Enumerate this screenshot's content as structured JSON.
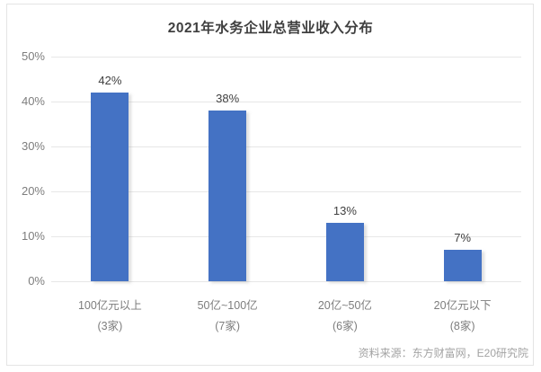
{
  "chart_data": {
    "type": "bar",
    "title": "2021年水务企业总营业收入分布",
    "categories": [
      "100亿元以上",
      "50亿~100亿",
      "20亿~50亿",
      "20亿元以下"
    ],
    "category_counts": [
      "(3家)",
      "(7家)",
      "(6家)",
      "(8家)"
    ],
    "values": [
      42,
      38,
      13,
      7
    ],
    "value_labels": [
      "42%",
      "38%",
      "13%",
      "7%"
    ],
    "yticks": [
      "0%",
      "10%",
      "20%",
      "30%",
      "40%",
      "50%"
    ],
    "ylim": [
      0,
      50
    ],
    "xlabel": "",
    "ylabel": "",
    "grid": true,
    "legend": "none",
    "bar_color": "#4472c4"
  },
  "source_note": "资料来源：东方财富网，E20研究院",
  "colors": {
    "bar": "#4472c4",
    "grid": "#e7e7e7",
    "title_text": "#3f3f3f",
    "axis_text": "#7d7d7d",
    "value_text": "#404040",
    "source_text": "#a3a3a3",
    "frame_border": "#e4e4e4"
  }
}
